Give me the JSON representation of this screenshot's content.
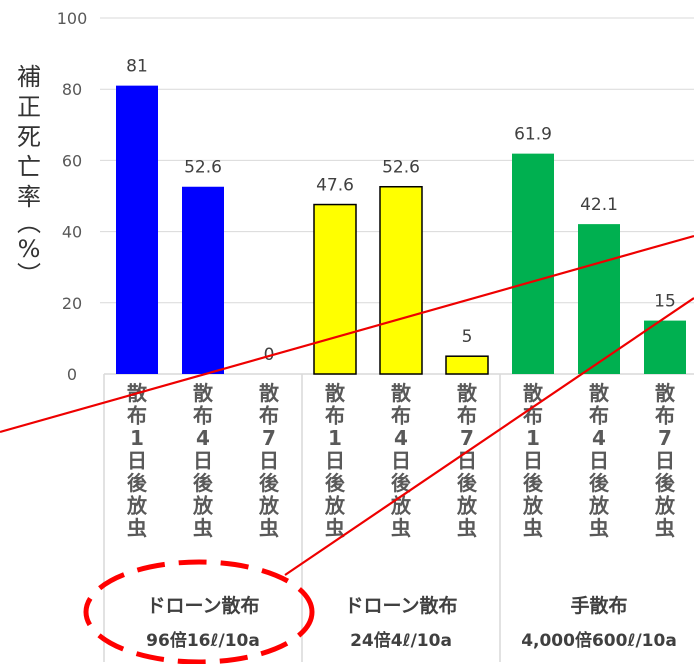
{
  "chart_data": {
    "type": "bar",
    "ylabel_chars": [
      "補",
      "正",
      "死",
      "亡",
      "率",
      "︵",
      "%",
      "︶"
    ],
    "ylim": [
      0,
      100
    ],
    "yticks": [
      0,
      20,
      40,
      60,
      80,
      100
    ],
    "grid": true,
    "groups": [
      {
        "name": "ドローン散布",
        "detail": "96倍16ℓ/10a",
        "color": "#0000ff",
        "bars": [
          {
            "label": [
              "散",
              "布",
              "1",
              "日",
              "後",
              "放",
              "虫"
            ],
            "value": 81,
            "value_label": "81"
          },
          {
            "label": [
              "散",
              "布",
              "4",
              "日",
              "後",
              "放",
              "虫"
            ],
            "value": 52.6,
            "value_label": "52.6"
          },
          {
            "label": [
              "散",
              "布",
              "7",
              "日",
              "後",
              "放",
              "虫"
            ],
            "value": 0,
            "value_label": "0"
          }
        ]
      },
      {
        "name": "ドローン散布",
        "detail": "24倍4ℓ/10a",
        "color": "#ffff00",
        "bars": [
          {
            "label": [
              "散",
              "布",
              "1",
              "日",
              "後",
              "放",
              "虫"
            ],
            "value": 47.6,
            "value_label": "47.6"
          },
          {
            "label": [
              "散",
              "布",
              "4",
              "日",
              "後",
              "放",
              "虫"
            ],
            "value": 52.6,
            "value_label": "52.6"
          },
          {
            "label": [
              "散",
              "布",
              "7",
              "日",
              "後",
              "放",
              "虫"
            ],
            "value": 5,
            "value_label": "5"
          }
        ]
      },
      {
        "name": "手散布",
        "detail": "4,000倍600ℓ/10a",
        "color": "#00b050",
        "bars": [
          {
            "label": [
              "散",
              "布",
              "1",
              "日",
              "後",
              "放",
              "虫"
            ],
            "value": 61.9,
            "value_label": "61.9"
          },
          {
            "label": [
              "散",
              "布",
              "4",
              "日",
              "後",
              "放",
              "虫"
            ],
            "value": 42.1,
            "value_label": "42.1"
          },
          {
            "label": [
              "散",
              "布",
              "7",
              "日",
              "後",
              "放",
              "虫"
            ],
            "value": 15,
            "value_label": "15"
          }
        ]
      }
    ],
    "annotations": {
      "highlight_group": 0,
      "highlight_style": "red dashed ellipse",
      "line_color": "#ee0000",
      "ellipse_color": "#ff0000"
    }
  }
}
